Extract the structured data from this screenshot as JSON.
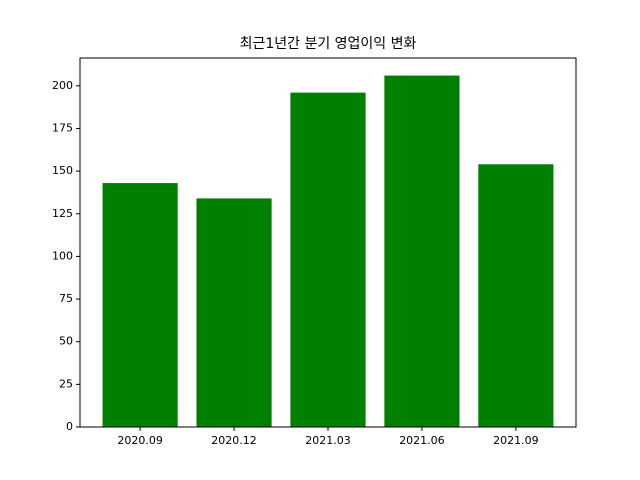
{
  "chart_data": {
    "type": "bar",
    "title": "최근1년간 분기 영업이익 변화",
    "categories": [
      "2020.09",
      "2020.12",
      "2021.03",
      "2021.06",
      "2021.09"
    ],
    "values": [
      143,
      134,
      196,
      206,
      154
    ],
    "color": "#008000",
    "ylim": [
      0,
      216.3
    ],
    "yticks": [
      0,
      25,
      50,
      75,
      100,
      125,
      150,
      175,
      200
    ]
  }
}
